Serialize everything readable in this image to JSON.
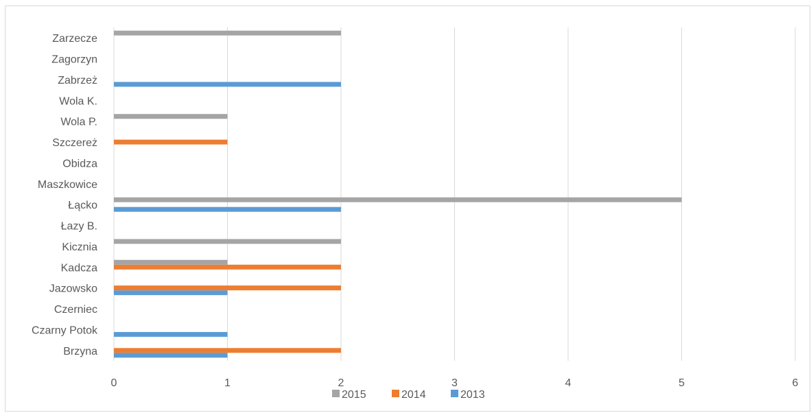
{
  "chart_data": {
    "type": "bar",
    "orientation": "horizontal",
    "categories": [
      "Brzyna",
      "Czarny Potok",
      "Czerniec",
      "Jazowsko",
      "Kadcza",
      "Kicznia",
      "Łazy B.",
      "Łącko",
      "Maszkowice",
      "Obidza",
      "Szczereż",
      "Wola P.",
      "Wola K.",
      "Zabrzeż",
      "Zagorzyn",
      "Zarzecze"
    ],
    "series": [
      {
        "name": "2013",
        "color": "#5b9bd5",
        "values": [
          1,
          1,
          0,
          1,
          0,
          0,
          0,
          2,
          0,
          0,
          0,
          0,
          0,
          2,
          0,
          0
        ]
      },
      {
        "name": "2014",
        "color": "#ed7d31",
        "values": [
          2,
          0,
          0,
          2,
          2,
          0,
          0,
          0,
          0,
          0,
          1,
          0,
          0,
          0,
          0,
          0
        ]
      },
      {
        "name": "2015",
        "color": "#a5a5a5",
        "values": [
          0,
          0,
          0,
          0,
          1,
          2,
          0,
          5,
          0,
          0,
          0,
          1,
          0,
          0,
          0,
          2
        ]
      }
    ],
    "xlim": [
      0,
      6
    ],
    "xticks": [
      "0",
      "1",
      "2",
      "3",
      "4",
      "5",
      "6"
    ],
    "grid": true,
    "legend": {
      "position": "bottom",
      "order": [
        "2015",
        "2014",
        "2013"
      ]
    },
    "title": "",
    "xlabel": "",
    "ylabel": ""
  }
}
